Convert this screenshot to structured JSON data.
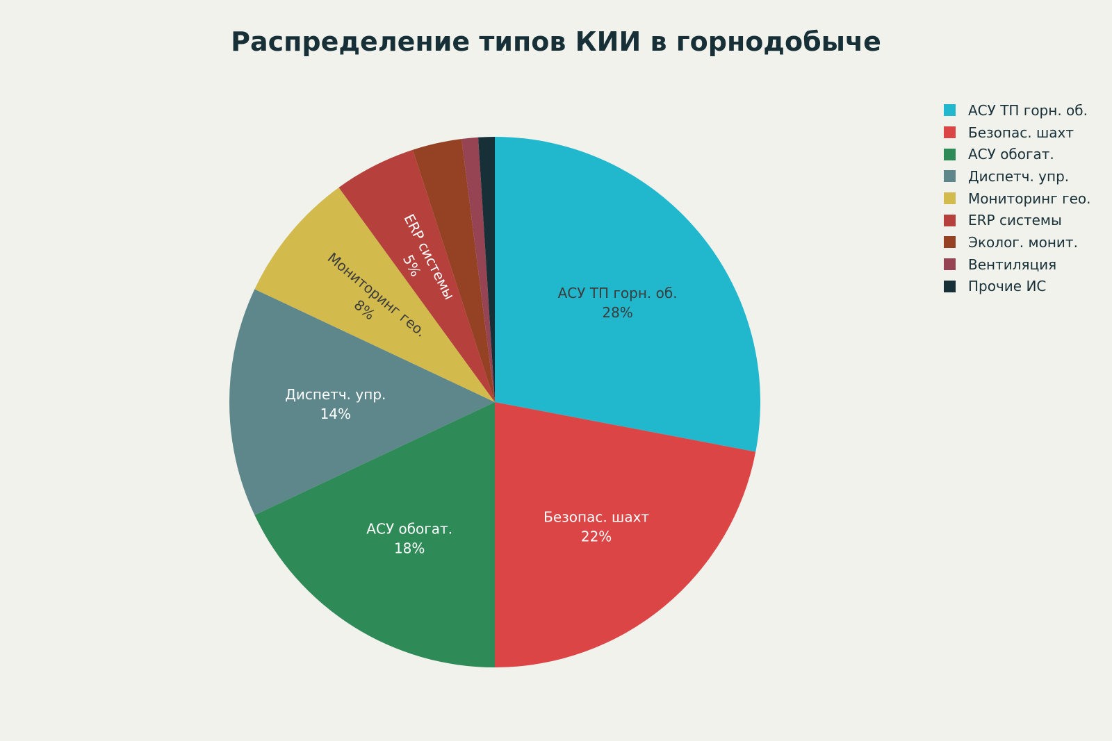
{
  "chart_data": {
    "type": "pie",
    "title": "Распределение типов КИИ в горнодобыче",
    "slices": [
      {
        "label": "АСУ ТП горн. об.",
        "value": 28,
        "percent_label": "28%",
        "color": "#21b7cd",
        "text_color": "#3c3c3c",
        "show_label": true
      },
      {
        "label": "Безопас. шахт",
        "value": 22,
        "percent_label": "22%",
        "color": "#db4545",
        "text_color": "#ffffff",
        "show_label": true
      },
      {
        "label": "АСУ обогат.",
        "value": 18,
        "percent_label": "18%",
        "color": "#2e8a57",
        "text_color": "#ffffff",
        "show_label": true
      },
      {
        "label": "Диспетч. упр.",
        "value": 14,
        "percent_label": "14%",
        "color": "#5e878c",
        "text_color": "#ffffff",
        "show_label": true
      },
      {
        "label": "Мониторинг гео.",
        "value": 8,
        "percent_label": "8%",
        "color": "#d2ba4c",
        "text_color": "#3c3c3c",
        "show_label": true
      },
      {
        "label": "ERP системы",
        "value": 5,
        "percent_label": "5%",
        "color": "#b5403c",
        "text_color": "#ffffff",
        "show_label": true
      },
      {
        "label": "Эколог. монит.",
        "value": 3,
        "percent_label": "3%",
        "color": "#944223",
        "text_color": "#ffffff",
        "show_label": false
      },
      {
        "label": "Вентиляция",
        "value": 1,
        "percent_label": "1%",
        "color": "#964354",
        "text_color": "#ffffff",
        "show_label": false
      },
      {
        "label": "Прочие ИС",
        "value": 1,
        "percent_label": "1%",
        "color": "#173038",
        "text_color": "#ffffff",
        "show_label": false
      }
    ],
    "start_direction": "top",
    "direction": "clockwise",
    "legend_position": "top-right"
  }
}
